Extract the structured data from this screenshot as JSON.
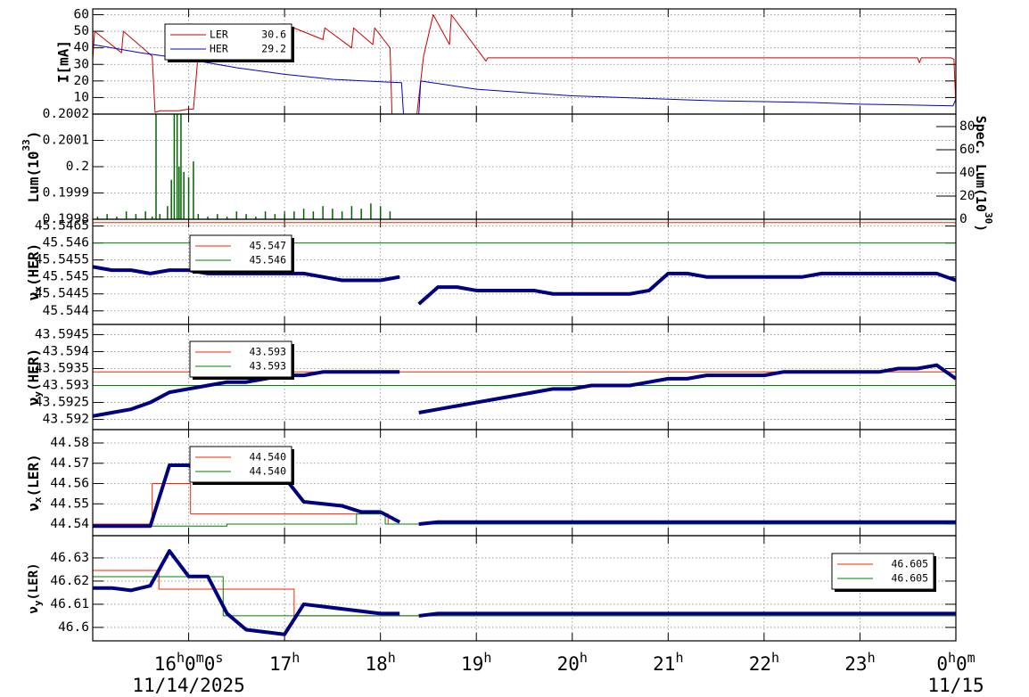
{
  "chart_data": [
    {
      "type": "line",
      "ylabel": "I[mA]",
      "xlim": [
        15,
        24
      ],
      "xticks": [
        16,
        17,
        18,
        19,
        20,
        21,
        22,
        23,
        24
      ],
      "ylim": [
        0,
        63.5
      ],
      "yticks": [
        10,
        20,
        30,
        40,
        50,
        60
      ],
      "grid": true,
      "series": [
        {
          "name": "LER",
          "color": "#cc0000",
          "legend": 30.6,
          "x": [
            15,
            15.02,
            15.3,
            15.32,
            15.62,
            15.65,
            15.7,
            15.9,
            16,
            16.05,
            16.12,
            16.6,
            16.62,
            17.08,
            17.1,
            17.4,
            17.42,
            17.7,
            17.72,
            17.92,
            17.94,
            18.1,
            18.12,
            18.38,
            18.45,
            18.55,
            18.72,
            18.74,
            19.1,
            19.12,
            23.6,
            23.62,
            23.64,
            23.95,
            23.98,
            24
          ],
          "values": [
            33,
            50,
            37,
            50,
            35,
            1,
            2,
            2,
            3,
            3,
            50,
            40,
            50,
            38,
            52,
            45,
            52,
            40,
            52,
            42,
            52,
            40,
            0,
            0,
            35,
            60,
            42,
            60,
            32,
            34,
            34,
            31,
            34,
            34,
            33,
            5
          ]
        },
        {
          "name": "HER",
          "color": "#0000cc",
          "legend": 29.2,
          "x": [
            15,
            15.5,
            16,
            16.5,
            17,
            17.5,
            18,
            18.22,
            18.24,
            18.4,
            18.42,
            19,
            19.5,
            20,
            20.5,
            21,
            21.5,
            22,
            22.5,
            23,
            23.5,
            23.97,
            24
          ],
          "values": [
            42,
            37,
            33,
            28,
            24,
            21,
            19.5,
            19,
            0,
            0,
            20,
            15,
            13,
            11,
            10,
            9,
            8,
            7.5,
            7,
            6,
            5.5,
            5,
            9
          ]
        }
      ]
    },
    {
      "type": "bar",
      "ylabel": [
        "Lum(10",
        "33",
        ")"
      ],
      "ylabel_script": "sup",
      "y2label": [
        "Spec. Lum(10",
        "30",
        ")"
      ],
      "color": "#006400",
      "xlim": [
        15,
        24
      ],
      "xticks": [
        16,
        17,
        18,
        19,
        20,
        21,
        22,
        23,
        24
      ],
      "ylim": [
        0.1998,
        0.2002
      ],
      "yticks": [
        0.1998,
        0.1999,
        0.2,
        0.2001,
        0.2002
      ],
      "y2lim": [
        0,
        90.8
      ],
      "y2ticks": [
        0,
        20,
        40,
        60,
        80
      ],
      "grid": true,
      "x": [
        15.05,
        15.15,
        15.25,
        15.35,
        15.45,
        15.55,
        15.62,
        15.66,
        15.7,
        15.78,
        15.82,
        15.85,
        15.88,
        15.9,
        15.92,
        15.95,
        16,
        16.05,
        16.1,
        16.2,
        16.3,
        16.4,
        16.5,
        16.6,
        16.7,
        16.8,
        16.9,
        17,
        17.1,
        17.2,
        17.3,
        17.4,
        17.5,
        17.6,
        17.7,
        17.8,
        17.9,
        18,
        18.1
      ],
      "values": [
        0.19981,
        0.19982,
        0.19981,
        0.19983,
        0.19982,
        0.19983,
        0.19981,
        0.2002,
        0.19982,
        0.19985,
        0.19995,
        0.2002,
        0.2002,
        0.2,
        0.2002,
        0.19998,
        0.19996,
        0.20002,
        0.19982,
        0.19981,
        0.19982,
        0.19981,
        0.19983,
        0.19982,
        0.19981,
        0.19983,
        0.19982,
        0.19982,
        0.19983,
        0.19984,
        0.19983,
        0.19985,
        0.19984,
        0.19983,
        0.19985,
        0.19984,
        0.19986,
        0.19985,
        0.19983
      ]
    },
    {
      "type": "line",
      "ylabel": [
        "ν",
        "x",
        "(HER)"
      ],
      "ylabel_script": "sub",
      "xlim": [
        15,
        24
      ],
      "xticks": [
        16,
        17,
        18,
        19,
        20,
        21,
        22,
        23,
        24
      ],
      "ylim": [
        45.5436,
        45.5467
      ],
      "yticks": [
        45.544,
        45.5445,
        45.545,
        45.5455,
        45.546,
        45.5465
      ],
      "grid": true,
      "x": [
        15,
        15.2,
        15.4,
        15.6,
        15.8,
        16,
        16.2,
        16.4,
        16.6,
        16.8,
        17,
        17.2,
        17.4,
        17.6,
        17.8,
        18,
        18.2,
        18.3,
        18.4,
        18.6,
        18.8,
        19,
        19.2,
        19.4,
        19.6,
        19.8,
        20,
        20.2,
        20.4,
        20.6,
        20.8,
        21,
        21.2,
        21.4,
        21.6,
        21.8,
        22,
        22.2,
        22.4,
        22.6,
        22.8,
        23,
        23.2,
        23.4,
        23.6,
        23.8,
        24
      ],
      "series": [
        {
          "color": "#ff2200",
          "legend": 45.547,
          "x": [
            15,
            24
          ],
          "values": [
            45.5466,
            45.5466
          ]
        },
        {
          "color": "#008000",
          "legend": 45.546,
          "x": [
            15,
            24
          ],
          "values": [
            45.546,
            45.546
          ]
        },
        {
          "color": "#000080",
          "line_width": 4,
          "values": [
            45.5453,
            45.5452,
            45.5452,
            45.5451,
            45.5452,
            45.5452,
            45.5451,
            45.5451,
            45.5451,
            45.5451,
            45.5451,
            45.5451,
            45.545,
            45.5449,
            45.5449,
            45.5449,
            45.545,
            null,
            45.5442,
            45.5447,
            45.5447,
            45.5446,
            45.5446,
            45.5446,
            45.5446,
            45.5445,
            45.5445,
            45.5445,
            45.5445,
            45.5445,
            45.5446,
            45.5451,
            45.5451,
            45.545,
            45.545,
            45.545,
            45.545,
            45.545,
            45.545,
            45.5451,
            45.5451,
            45.5451,
            45.5451,
            45.5451,
            45.5451,
            45.5451,
            45.5449
          ]
        }
      ]
    },
    {
      "type": "line",
      "ylabel": [
        "ν",
        "y",
        "(HER)"
      ],
      "ylabel_script": "sub",
      "xlim": [
        15,
        24
      ],
      "xticks": [
        16,
        17,
        18,
        19,
        20,
        21,
        22,
        23,
        24
      ],
      "ylim": [
        43.5917,
        43.5948
      ],
      "yticks": [
        43.592,
        43.5925,
        43.593,
        43.5935,
        43.594,
        43.5945
      ],
      "grid": true,
      "x": [
        15,
        15.2,
        15.4,
        15.6,
        15.8,
        16,
        16.2,
        16.4,
        16.6,
        16.8,
        17,
        17.2,
        17.4,
        17.6,
        17.8,
        18,
        18.2,
        18.3,
        18.4,
        18.6,
        18.8,
        19,
        19.2,
        19.4,
        19.6,
        19.8,
        20,
        20.2,
        20.4,
        20.6,
        20.8,
        21,
        21.2,
        21.4,
        21.6,
        21.8,
        22,
        22.2,
        22.4,
        22.6,
        22.8,
        23,
        23.2,
        23.4,
        23.6,
        23.8,
        24
      ],
      "series": [
        {
          "color": "#ff2200",
          "legend": 43.593,
          "x": [
            15,
            24
          ],
          "values": [
            43.5934,
            43.5934
          ]
        },
        {
          "color": "#008000",
          "legend": 43.593,
          "x": [
            15,
            24
          ],
          "values": [
            43.593,
            43.593
          ]
        },
        {
          "color": "#000080",
          "line_width": 4,
          "values": [
            43.5921,
            43.5922,
            43.5923,
            43.5925,
            43.5928,
            43.5929,
            43.593,
            43.5931,
            43.5931,
            43.5932,
            43.5933,
            43.5933,
            43.5934,
            43.5934,
            43.5934,
            43.5934,
            43.5934,
            null,
            43.5922,
            43.5923,
            43.5924,
            43.5925,
            43.5926,
            43.5927,
            43.5928,
            43.5929,
            43.5929,
            43.593,
            43.593,
            43.593,
            43.5931,
            43.5932,
            43.5932,
            43.5933,
            43.5933,
            43.5933,
            43.5933,
            43.5934,
            43.5934,
            43.5934,
            43.5934,
            43.5934,
            43.5934,
            43.5935,
            43.5935,
            43.5936,
            43.5932
          ]
        }
      ]
    },
    {
      "type": "line",
      "ylabel": [
        "ν",
        "x",
        "(LER)"
      ],
      "ylabel_script": "sub",
      "xlim": [
        15,
        24
      ],
      "xticks": [
        16,
        17,
        18,
        19,
        20,
        21,
        22,
        23,
        24
      ],
      "ylim": [
        44.5343,
        44.5866
      ],
      "yticks": [
        44.54,
        44.55,
        44.56,
        44.57,
        44.58
      ],
      "grid": true,
      "x": [
        15,
        15.2,
        15.4,
        15.6,
        15.8,
        16,
        16.2,
        16.4,
        16.6,
        16.8,
        17,
        17.2,
        17.4,
        17.6,
        17.8,
        18,
        18.2,
        18.3,
        18.4,
        18.6,
        18.8,
        19,
        19.2,
        19.4,
        19.6,
        19.8,
        20,
        20.2,
        20.4,
        20.6,
        20.8,
        21,
        21.2,
        21.4,
        21.6,
        21.8,
        22,
        22.2,
        22.4,
        22.6,
        22.8,
        23,
        23.2,
        23.4,
        23.6,
        23.8,
        24
      ],
      "series": [
        {
          "color": "#ff2200",
          "legend": {
            "value": 44.54,
            "label": "44.540"
          },
          "x": [
            15,
            15.62,
            15.62,
            16.02,
            16.02,
            18.08,
            18.08,
            24
          ],
          "values": [
            44.54,
            44.54,
            44.56,
            44.56,
            44.545,
            44.545,
            44.54,
            44.54
          ]
        },
        {
          "color": "#008000",
          "legend": {
            "value": 44.54,
            "label": "44.540"
          },
          "x": [
            15,
            16.4,
            16.4,
            17.75,
            17.75,
            18.05,
            18.05,
            24
          ],
          "values": [
            44.539,
            44.539,
            44.54,
            44.54,
            44.545,
            44.545,
            44.54,
            44.54
          ]
        },
        {
          "color": "#000080",
          "line_width": 4,
          "values": [
            44.539,
            44.539,
            44.539,
            44.539,
            44.569,
            44.569,
            44.563,
            44.564,
            44.564,
            44.564,
            44.563,
            44.551,
            44.55,
            44.549,
            44.546,
            44.546,
            44.541,
            null,
            44.54,
            44.541,
            44.541,
            44.541,
            44.541,
            44.541,
            44.541,
            44.541,
            44.541,
            44.541,
            44.541,
            44.541,
            44.541,
            44.541,
            44.541,
            44.541,
            44.541,
            44.541,
            44.541,
            44.541,
            44.541,
            44.541,
            44.541,
            44.541,
            44.541,
            44.541,
            44.541,
            44.541,
            44.541
          ]
        }
      ]
    },
    {
      "type": "line",
      "ylabel": [
        "ν",
        "y",
        "(LER)"
      ],
      "ylabel_script": "sub",
      "xlim": [
        15,
        24
      ],
      "xticks": [
        {
          "value": 16,
          "label": [
            "16",
            "h",
            "0",
            "m",
            "0",
            "s"
          ]
        },
        {
          "value": 17,
          "label": [
            "17",
            "h"
          ]
        },
        {
          "value": 18,
          "label": [
            "18",
            "h"
          ]
        },
        {
          "value": 19,
          "label": [
            "19",
            "h"
          ]
        },
        {
          "value": 20,
          "label": [
            "20",
            "h"
          ]
        },
        {
          "value": 21,
          "label": [
            "21",
            "h"
          ]
        },
        {
          "value": 22,
          "label": [
            "22",
            "h"
          ]
        },
        {
          "value": 23,
          "label": [
            "23",
            "h"
          ]
        },
        {
          "value": 24,
          "label": [
            "0",
            "h",
            "0",
            "m"
          ]
        }
      ],
      "date_labels": [
        {
          "value": 16,
          "label": "11/14/2025"
        },
        {
          "value": 24,
          "label": "11/15"
        }
      ],
      "ylim": [
        46.5942,
        46.6396
      ],
      "yticks": [
        46.6,
        46.61,
        46.62,
        46.63
      ],
      "grid": true,
      "x": [
        15,
        15.2,
        15.4,
        15.6,
        15.8,
        16,
        16.2,
        16.4,
        16.6,
        16.8,
        17,
        17.2,
        17.4,
        17.6,
        17.8,
        18,
        18.2,
        18.3,
        18.4,
        18.6,
        18.8,
        19,
        19.2,
        19.4,
        19.6,
        19.8,
        20,
        20.2,
        20.4,
        20.6,
        20.8,
        21,
        21.2,
        21.4,
        21.6,
        21.8,
        22,
        22.2,
        22.4,
        22.6,
        22.8,
        23,
        23.2,
        23.4,
        23.6,
        23.8,
        24
      ],
      "series": [
        {
          "color": "#ff2200",
          "legend": 46.605,
          "x": [
            15,
            15.69,
            15.69,
            17.1,
            17.1,
            24
          ],
          "values": [
            46.6246,
            46.6246,
            46.6165,
            46.6165,
            46.605,
            46.605
          ]
        },
        {
          "color": "#008000",
          "legend": 46.605,
          "x": [
            15,
            16.36,
            16.36,
            24
          ],
          "values": [
            46.6219,
            46.6219,
            46.605,
            46.605
          ]
        },
        {
          "color": "#000080",
          "line_width": 4,
          "values": [
            46.617,
            46.617,
            46.616,
            46.618,
            46.633,
            46.622,
            46.622,
            46.606,
            46.599,
            46.598,
            46.597,
            46.61,
            46.609,
            46.608,
            46.607,
            46.606,
            46.606,
            null,
            46.605,
            46.606,
            46.606,
            46.606,
            46.606,
            46.606,
            46.606,
            46.606,
            46.606,
            46.606,
            46.606,
            46.606,
            46.606,
            46.606,
            46.606,
            46.606,
            46.606,
            46.606,
            46.606,
            46.606,
            46.606,
            46.606,
            46.606,
            46.606,
            46.606,
            46.606,
            46.606,
            46.606,
            46.606
          ]
        }
      ]
    }
  ]
}
